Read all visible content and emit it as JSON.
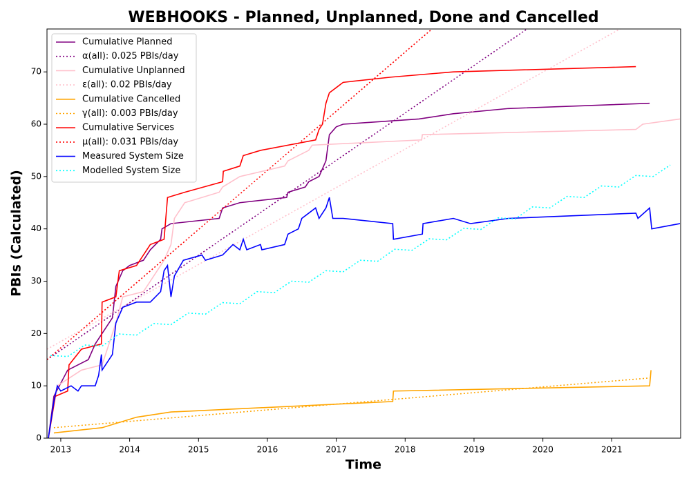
{
  "chart_data": {
    "type": "line",
    "title": "WEBHOOKS - Planned, Unplanned, Done  and Cancelled",
    "x_label": "Time",
    "y_label": "PBIs (Calculated)",
    "xlim": [
      2012.8,
      2022.0
    ],
    "xticks": [
      2013,
      2014,
      2015,
      2016,
      2017,
      2018,
      2019,
      2020,
      2021
    ],
    "ylim": [
      0,
      78.2
    ],
    "yticks": [
      0,
      10,
      20,
      30,
      40,
      50,
      60,
      70
    ],
    "legend": "upper left",
    "series": [
      {
        "name": "Cumulative Planned",
        "color": "#800080",
        "style": "solid",
        "x": [
          2012.82,
          2012.9,
          2013.1,
          2013.4,
          2013.5,
          2013.6,
          2013.75,
          2013.8,
          2013.9,
          2014.0,
          2014.2,
          2014.3,
          2014.45,
          2014.47,
          2014.6,
          2015.3,
          2015.35,
          2015.6,
          2016.28,
          2016.3,
          2016.55,
          2016.6,
          2016.75,
          2016.85,
          2016.9,
          2017.0,
          2017.1,
          2018.2,
          2018.7,
          2019.5,
          2021.55
        ],
        "values": [
          0,
          8,
          13,
          15,
          18,
          20,
          23,
          29,
          32,
          33,
          34,
          36,
          38,
          40,
          41,
          42,
          44,
          45,
          46,
          47,
          48,
          49,
          50,
          53,
          58,
          59.5,
          60,
          61,
          62,
          63,
          64
        ]
      },
      {
        "name": "α(all): 0.025 PBIs/day",
        "color": "#800080",
        "style": "dotted",
        "x": [
          2012.8,
          2019.77
        ],
        "values": [
          15,
          78.2
        ]
      },
      {
        "name": "Cumulative Unplanned",
        "color": "#ffc0cb",
        "style": "solid",
        "x": [
          2012.82,
          2012.95,
          2013.3,
          2013.6,
          2013.8,
          2013.9,
          2014.2,
          2014.3,
          2014.5,
          2014.6,
          2014.65,
          2014.8,
          2015.3,
          2015.35,
          2015.6,
          2016.25,
          2016.3,
          2016.6,
          2016.65,
          2018.24,
          2018.25,
          2021.35,
          2021.45,
          2021.99
        ],
        "values": [
          0,
          10,
          13,
          14,
          22,
          27,
          28,
          30,
          34,
          37,
          42,
          45,
          47,
          48,
          50,
          52,
          53,
          55,
          56,
          57,
          58,
          59,
          60,
          61
        ]
      },
      {
        "name": "ε(all): 0.02 PBIs/day",
        "color": "#ffc0cb",
        "style": "dotted",
        "x": [
          2012.8,
          2021.12
        ],
        "values": [
          17,
          78.2
        ]
      },
      {
        "name": "Cumulative Cancelled",
        "color": "#ffa500",
        "style": "solid",
        "x": [
          2012.9,
          2013.6,
          2014.1,
          2014.6,
          2017.82,
          2017.83,
          2021.55,
          2021.57
        ],
        "values": [
          1,
          2,
          4,
          5,
          7,
          9,
          10,
          13
        ]
      },
      {
        "name": "γ(all): 0.003 PBIs/day",
        "color": "#ffa500",
        "style": "dotted",
        "x": [
          2012.9,
          2021.55
        ],
        "values": [
          2,
          11.5
        ]
      },
      {
        "name": "Cumulative Services",
        "color": "#ff0000",
        "style": "solid",
        "x": [
          2012.82,
          2012.92,
          2013.1,
          2013.12,
          2013.3,
          2013.59,
          2013.6,
          2013.8,
          2013.85,
          2014.1,
          2014.2,
          2014.3,
          2014.5,
          2014.55,
          2014.8,
          2015.35,
          2015.36,
          2015.6,
          2015.65,
          2015.9,
          2016.7,
          2016.75,
          2016.8,
          2016.85,
          2016.9,
          2017.0,
          2017.1,
          2017.8,
          2018.7,
          2021.35
        ],
        "values": [
          0,
          8,
          9,
          14,
          17,
          18,
          26,
          27,
          32,
          33,
          35,
          37,
          38,
          46,
          47,
          49,
          51,
          52,
          54,
          55,
          57,
          59,
          60,
          64,
          66,
          67,
          68,
          69,
          70,
          71
        ]
      },
      {
        "name": "μ(all): 0.031 PBIs/day",
        "color": "#ff0000",
        "style": "dotted",
        "x": [
          2012.8,
          2018.39
        ],
        "values": [
          15,
          78.2
        ]
      },
      {
        "name": "Measured System Size",
        "color": "#0000ff",
        "style": "solid",
        "x": [
          2012.82,
          2012.9,
          2012.95,
          2013.0,
          2013.15,
          2013.25,
          2013.3,
          2013.5,
          2013.55,
          2013.59,
          2013.6,
          2013.75,
          2013.8,
          2013.9,
          2014.1,
          2014.3,
          2014.45,
          2014.5,
          2014.55,
          2014.6,
          2014.65,
          2014.78,
          2015.05,
          2015.1,
          2015.35,
          2015.5,
          2015.6,
          2015.65,
          2015.7,
          2015.9,
          2015.92,
          2016.25,
          2016.3,
          2016.45,
          2016.5,
          2016.6,
          2016.7,
          2016.75,
          2016.85,
          2016.9,
          2016.95,
          2017.1,
          2017.82,
          2017.83,
          2018.25,
          2018.26,
          2018.7,
          2018.95,
          2019.5,
          2021.35,
          2021.38,
          2021.55,
          2021.58,
          2021.99
        ],
        "values": [
          0,
          7,
          10,
          9,
          10,
          9,
          10,
          10,
          12,
          16,
          13,
          16,
          22,
          25,
          26,
          26,
          28,
          32,
          33,
          27,
          31,
          34,
          35,
          34,
          35,
          37,
          36,
          38,
          36,
          37,
          36,
          37,
          39,
          40,
          42,
          43,
          44,
          42,
          44,
          46,
          42,
          42,
          41,
          38,
          39,
          41,
          42,
          41,
          42,
          43,
          42,
          44,
          40,
          41
        ]
      },
      {
        "name": "Modelled System Size",
        "color": "#00ffff",
        "style": "dotted",
        "x": [
          2012.85,
          2013.1,
          2013.35,
          2013.6,
          2013.85,
          2014.1,
          2014.35,
          2014.6,
          2014.85,
          2015.1,
          2015.35,
          2015.6,
          2015.85,
          2016.1,
          2016.35,
          2016.6,
          2016.85,
          2017.1,
          2017.35,
          2017.6,
          2017.85,
          2018.1,
          2018.35,
          2018.6,
          2018.85,
          2019.1,
          2019.35,
          2019.6,
          2019.85,
          2020.1,
          2020.35,
          2020.6,
          2020.85,
          2021.1,
          2021.35,
          2021.6,
          2021.85
        ],
        "values": [
          15.8,
          15.6,
          17.8,
          17.6,
          19.9,
          19.7,
          21.9,
          21.7,
          23.9,
          23.7,
          25.9,
          25.7,
          28.0,
          27.8,
          30.0,
          29.8,
          32.0,
          31.8,
          34.0,
          33.8,
          36.1,
          35.9,
          38.1,
          37.9,
          40.1,
          39.9,
          42.1,
          41.9,
          44.2,
          44.0,
          46.2,
          46.0,
          48.2,
          48.0,
          50.2,
          50.0,
          52.2
        ]
      }
    ]
  }
}
